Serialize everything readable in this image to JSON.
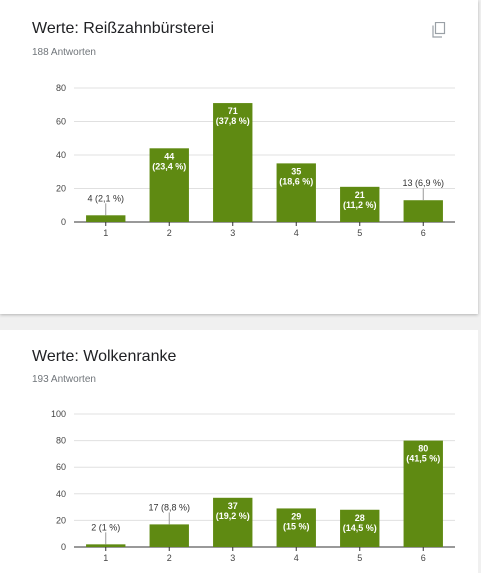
{
  "theme": {
    "bar_color": "#5f8a12",
    "grid_color": "#e0e0e0",
    "axis_color": "#333333"
  },
  "card1": {
    "title": "Werte: Reißzahnbürsterei",
    "subtitle": "188 Antworten",
    "copy_icon": "copy-icon"
  },
  "card2": {
    "title": "Werte: Wolkenranke",
    "subtitle": "193 Antworten"
  },
  "chart_data": [
    {
      "type": "bar",
      "categories": [
        "1",
        "2",
        "3",
        "4",
        "5",
        "6"
      ],
      "values": [
        4,
        44,
        71,
        35,
        21,
        13
      ],
      "labels": [
        "4 (2,1 %)",
        "44 (23,4 %)",
        "71 (37,8 %)",
        "35 (18,6 %)",
        "21 (11,2 %)",
        "13 (6,9 %)"
      ],
      "ylim": [
        0,
        80
      ],
      "yticks": [
        0,
        20,
        40,
        60,
        80
      ],
      "grid": true
    },
    {
      "type": "bar",
      "categories": [
        "1",
        "2",
        "3",
        "4",
        "5",
        "6"
      ],
      "values": [
        2,
        17,
        37,
        29,
        28,
        80
      ],
      "labels": [
        "2 (1 %)",
        "17 (8,8 %)",
        "37 (19,2 %)",
        "29 (15 %)",
        "28 (14,5 %)",
        "80 (41,5 %)"
      ],
      "ylim": [
        0,
        100
      ],
      "yticks": [
        0,
        20,
        40,
        60,
        80,
        100
      ],
      "grid": true
    }
  ]
}
